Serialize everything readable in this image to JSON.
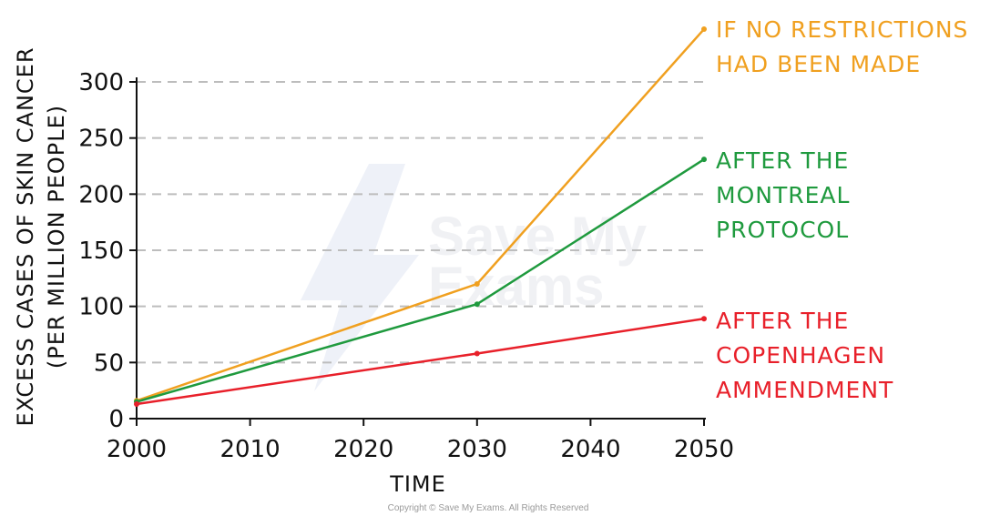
{
  "chart_data": {
    "type": "line",
    "xlabel": "TIME",
    "ylabel": "EXCESS CASES OF SKIN CANCER",
    "ylabel_sub": "(PER MILLION PEOPLE)",
    "xlim": [
      2000,
      2050
    ],
    "ylim": [
      0,
      300
    ],
    "x_ticks": [
      2000,
      2010,
      2020,
      2030,
      2040,
      2050
    ],
    "y_ticks": [
      0,
      50,
      100,
      150,
      200,
      250,
      300
    ],
    "grid": "horizontal dashed",
    "series": [
      {
        "name_lines": [
          "IF NO RESTRICTIONS",
          "HAD BEEN MADE"
        ],
        "color": "#f0a020",
        "x": [
          2000,
          2030,
          2050
        ],
        "y": [
          16,
          120,
          347
        ]
      },
      {
        "name_lines": [
          "AFTER THE",
          "MONTREAL",
          "PROTOCOL"
        ],
        "color": "#1f9a3e",
        "x": [
          2000,
          2030,
          2050
        ],
        "y": [
          15,
          102,
          231
        ]
      },
      {
        "name_lines": [
          "AFTER THE",
          "COPENHAGEN",
          "AMMENDMENT"
        ],
        "color": "#e8202a",
        "x": [
          2000,
          2030,
          2050
        ],
        "y": [
          13,
          58,
          89
        ]
      }
    ]
  },
  "watermark": {
    "brand_lines": [
      "Save My",
      "Exams"
    ],
    "copyright": "Copyright © Save My Exams. All Rights Reserved"
  }
}
